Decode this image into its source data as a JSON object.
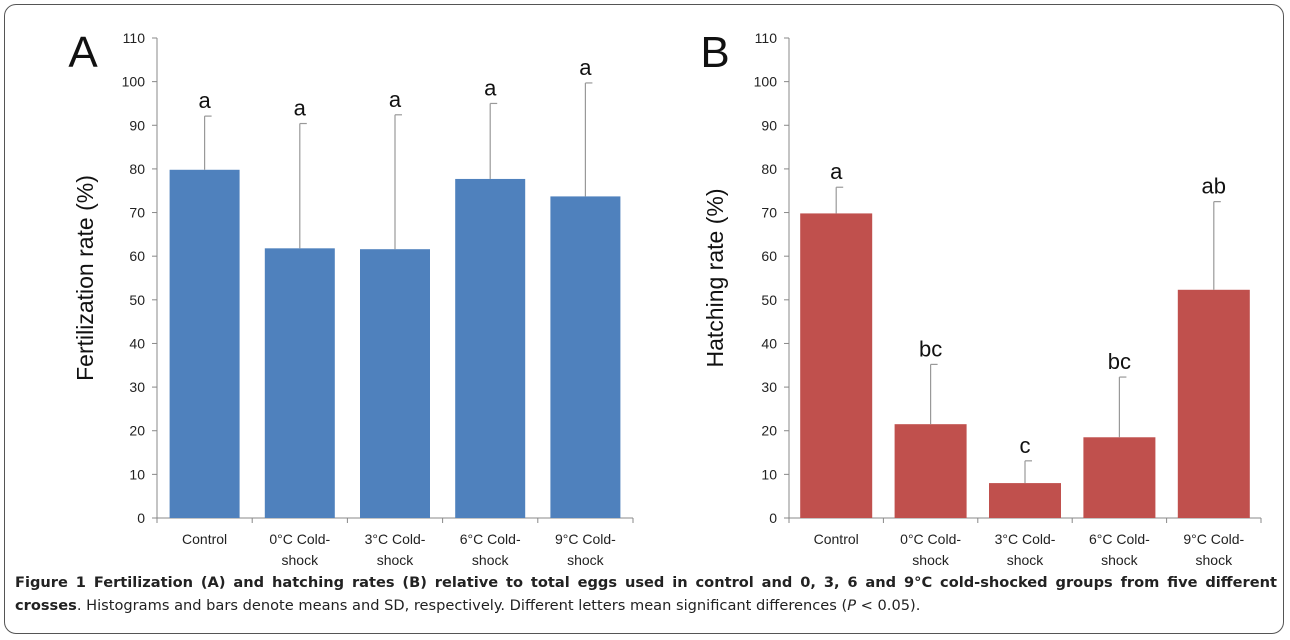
{
  "chart_data": [
    {
      "type": "bar",
      "panel_letter": "A",
      "ylabel": "Fertilization  rate (%)",
      "ylim": [
        0,
        110
      ],
      "yticks": [
        "0",
        "10",
        "20",
        "30",
        "40",
        "50",
        "60",
        "70",
        "80",
        "90",
        "100",
        "110"
      ],
      "categories": [
        [
          "Control"
        ],
        [
          "0°C Cold-",
          "shock"
        ],
        [
          "3°C Cold-",
          "shock"
        ],
        [
          "6°C Cold-",
          "shock"
        ],
        [
          "9°C Cold-",
          "shock"
        ]
      ],
      "values": [
        79.8,
        61.8,
        61.6,
        77.7,
        73.7
      ],
      "sd": [
        12.3,
        28.6,
        30.8,
        17.3,
        26.0
      ],
      "letters": [
        "a",
        "a",
        "a",
        "a",
        "a"
      ],
      "bar_color": "#4f81bd",
      "grid": false
    },
    {
      "type": "bar",
      "panel_letter": "B",
      "ylabel": "Hatching rate (%)",
      "ylim": [
        0,
        110
      ],
      "yticks": [
        "0",
        "10",
        "20",
        "30",
        "40",
        "50",
        "60",
        "70",
        "80",
        "90",
        "100",
        "110"
      ],
      "categories": [
        [
          "Control"
        ],
        [
          "0°C Cold-",
          "shock"
        ],
        [
          "3°C Cold-",
          "shock"
        ],
        [
          "6°C Cold-",
          "shock"
        ],
        [
          "9°C Cold-",
          "shock"
        ]
      ],
      "values": [
        69.8,
        21.5,
        8.0,
        18.5,
        52.3
      ],
      "sd": [
        6.0,
        13.7,
        5.1,
        13.8,
        20.2
      ],
      "letters": [
        "a",
        "bc",
        "c",
        "bc",
        "ab"
      ],
      "bar_color": "#c0504d",
      "grid": false
    }
  ],
  "caption": {
    "bold": "Figure 1 Fertilization (A) and hatching rates (B) relative to total eggs used in control and 0, 3, 6 and 9°C cold-shocked groups from five different crosses",
    "text1": ". Histograms and bars denote means and SD, respectively. Different letters mean significant differences (",
    "italic": "P",
    "text2": " < 0.05)."
  }
}
